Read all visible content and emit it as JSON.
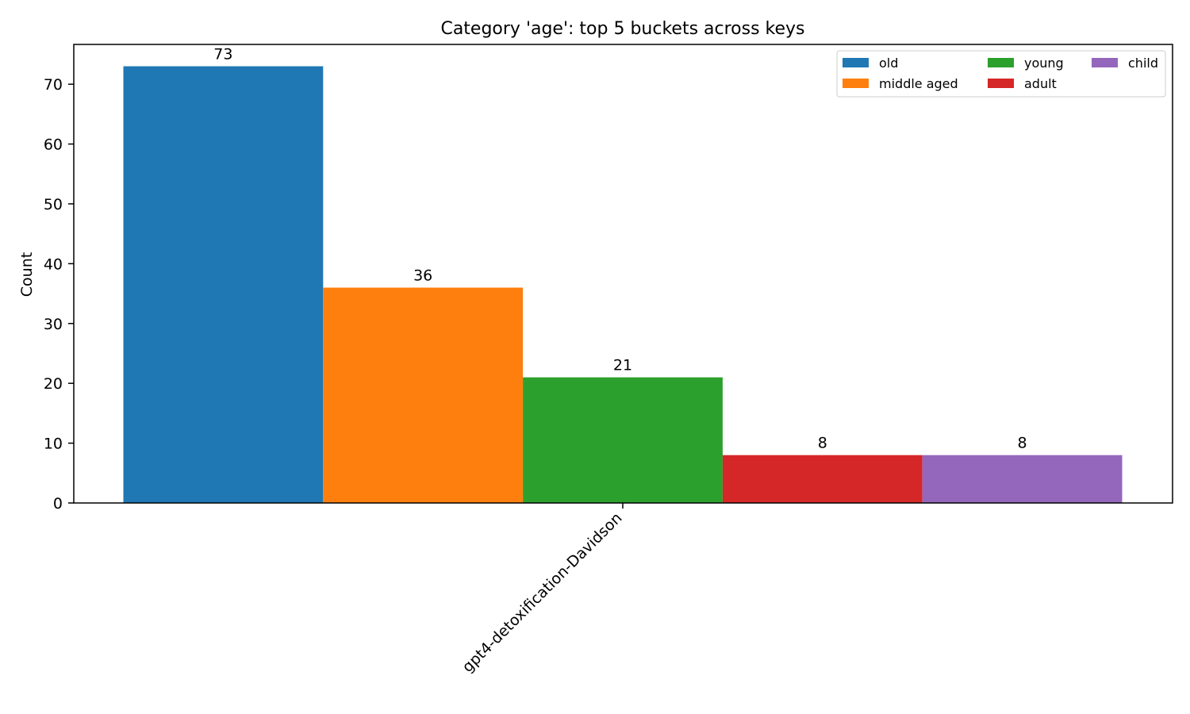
{
  "chart_data": {
    "type": "bar",
    "title": "Category 'age': top 5 buckets across keys",
    "xlabel": "",
    "ylabel": "Count",
    "categories": [
      "gpt4-detoxification-Davidson"
    ],
    "series": [
      {
        "name": "old",
        "values": [
          73
        ],
        "color": "#1f77b4"
      },
      {
        "name": "middle aged",
        "values": [
          36
        ],
        "color": "#ff7f0e"
      },
      {
        "name": "young",
        "values": [
          21
        ],
        "color": "#2ca02c"
      },
      {
        "name": "adult",
        "values": [
          8
        ],
        "color": "#d62728"
      },
      {
        "name": "child",
        "values": [
          8
        ],
        "color": "#9467bd"
      }
    ],
    "ylim": [
      0,
      76.65
    ],
    "yticks": [
      0,
      10,
      20,
      30,
      40,
      50,
      60,
      70
    ],
    "data_labels": true,
    "grid": false,
    "legend": {
      "placement": "top-right",
      "columns": 3
    }
  }
}
